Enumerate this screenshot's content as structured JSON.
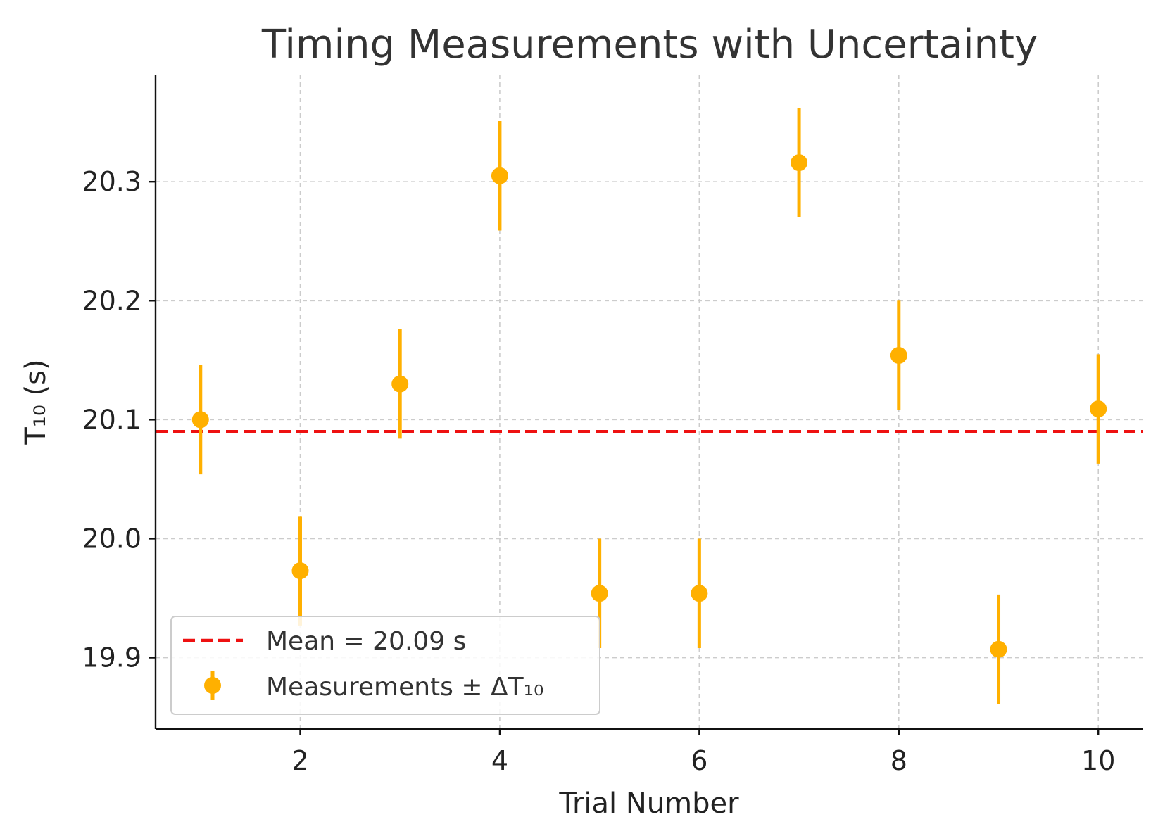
{
  "chart_data": {
    "type": "scatter",
    "title": "Timing Measurements with Uncertainty",
    "xlabel": "Trial Number",
    "ylabel": "T₁₀ (s)",
    "xlim": [
      0.55,
      10.45
    ],
    "ylim": [
      19.84,
      20.39
    ],
    "xticks": [
      2,
      4,
      6,
      8,
      10
    ],
    "xtick_labels": [
      "2",
      "4",
      "6",
      "8",
      "10"
    ],
    "yticks": [
      19.9,
      20.0,
      20.1,
      20.2,
      20.3
    ],
    "ytick_labels": [
      "19.9",
      "20.0",
      "20.1",
      "20.2",
      "20.3"
    ],
    "grid": true,
    "legend_position": "lower-left",
    "series": [
      {
        "name": "Measurements ± ΔT₁₀",
        "kind": "errorbar",
        "color": "#FFB000",
        "x": [
          1,
          2,
          3,
          4,
          5,
          6,
          7,
          8,
          9,
          10
        ],
        "y": [
          20.1,
          19.973,
          20.13,
          20.305,
          19.954,
          19.954,
          20.316,
          20.154,
          19.907,
          20.109
        ],
        "yerr": [
          0.046,
          0.046,
          0.046,
          0.046,
          0.046,
          0.046,
          0.046,
          0.046,
          0.046,
          0.046
        ]
      },
      {
        "name": "Mean = 20.09 s",
        "kind": "hline",
        "color": "#EE1111",
        "y": 20.09
      }
    ]
  }
}
